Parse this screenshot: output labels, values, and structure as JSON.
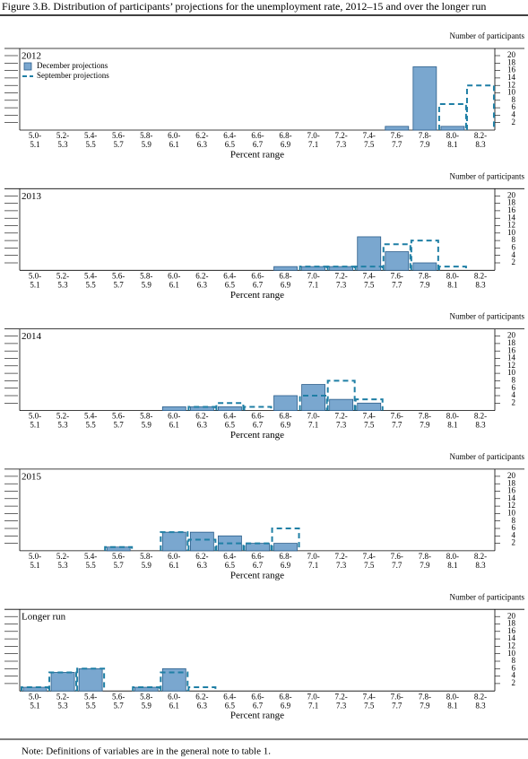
{
  "title": "Figure 3.B. Distribution of participants’ projections for the unemployment rate, 2012–15 and over the longer run",
  "note": "Note:  Definitions of variables are in the general note to table 1.",
  "chart_data": [
    {
      "type": "bar",
      "title": "2012",
      "y_label": "Number of participants",
      "x_label": "Percent range",
      "legend": "upper left",
      "categories": [
        [
          "5.0-",
          "5.1"
        ],
        [
          "5.2-",
          "5.3"
        ],
        [
          "5.4-",
          "5.5"
        ],
        [
          "5.6-",
          "5.7"
        ],
        [
          "5.8-",
          "5.9"
        ],
        [
          "6.0-",
          "6.1"
        ],
        [
          "6.2-",
          "6.3"
        ],
        [
          "6.4-",
          "6.5"
        ],
        [
          "6.6-",
          "6.7"
        ],
        [
          "6.8-",
          "6.9"
        ],
        [
          "7.0-",
          "7.1"
        ],
        [
          "7.2-",
          "7.3"
        ],
        [
          "7.4-",
          "7.5"
        ],
        [
          "7.6-",
          "7.7"
        ],
        [
          "7.8-",
          "7.9"
        ],
        [
          "8.0-",
          "8.1"
        ],
        [
          "8.2-",
          "8.3"
        ]
      ],
      "series": [
        {
          "name": "December projections",
          "color": "#7aa7cf",
          "values": [
            0,
            0,
            0,
            0,
            0,
            0,
            0,
            0,
            0,
            0,
            0,
            0,
            0,
            1,
            17,
            1,
            0
          ]
        },
        {
          "name": "September projections",
          "color": "#1f7fa5",
          "values": [
            0,
            0,
            0,
            0,
            0,
            0,
            0,
            0,
            0,
            0,
            0,
            0,
            0,
            0,
            0,
            7,
            12
          ]
        }
      ],
      "ylim": [
        0,
        20
      ],
      "yticks": [
        2,
        4,
        6,
        8,
        10,
        12,
        14,
        16,
        18,
        20
      ]
    },
    {
      "type": "bar",
      "title": "2013",
      "y_label": "Number of participants",
      "x_label": "Percent range",
      "categories": [
        [
          "5.0-",
          "5.1"
        ],
        [
          "5.2-",
          "5.3"
        ],
        [
          "5.4-",
          "5.5"
        ],
        [
          "5.6-",
          "5.7"
        ],
        [
          "5.8-",
          "5.9"
        ],
        [
          "6.0-",
          "6.1"
        ],
        [
          "6.2-",
          "6.3"
        ],
        [
          "6.4-",
          "6.5"
        ],
        [
          "6.6-",
          "6.7"
        ],
        [
          "6.8-",
          "6.9"
        ],
        [
          "7.0-",
          "7.1"
        ],
        [
          "7.2-",
          "7.3"
        ],
        [
          "7.4-",
          "7.5"
        ],
        [
          "7.6-",
          "7.7"
        ],
        [
          "7.8-",
          "7.9"
        ],
        [
          "8.0-",
          "8.1"
        ],
        [
          "8.2-",
          "8.3"
        ]
      ],
      "series": [
        {
          "color": "#7aa7cf",
          "values": [
            0,
            0,
            0,
            0,
            0,
            0,
            0,
            0,
            0,
            1,
            1,
            1,
            9,
            5,
            2,
            0,
            0
          ]
        },
        {
          "color": "#1f7fa5",
          "values": [
            0,
            0,
            0,
            0,
            0,
            0,
            0,
            0,
            0,
            0,
            1,
            1,
            1,
            7,
            8,
            1,
            0
          ]
        }
      ],
      "ylim": [
        0,
        20
      ],
      "yticks": [
        2,
        4,
        6,
        8,
        10,
        12,
        14,
        16,
        18,
        20
      ]
    },
    {
      "type": "bar",
      "title": "2014",
      "y_label": "Number of participants",
      "x_label": "Percent range",
      "categories": [
        [
          "5.0-",
          "5.1"
        ],
        [
          "5.2-",
          "5.3"
        ],
        [
          "5.4-",
          "5.5"
        ],
        [
          "5.6-",
          "5.7"
        ],
        [
          "5.8-",
          "5.9"
        ],
        [
          "6.0-",
          "6.1"
        ],
        [
          "6.2-",
          "6.3"
        ],
        [
          "6.4-",
          "6.5"
        ],
        [
          "6.6-",
          "6.7"
        ],
        [
          "6.8-",
          "6.9"
        ],
        [
          "7.0-",
          "7.1"
        ],
        [
          "7.2-",
          "7.3"
        ],
        [
          "7.4-",
          "7.5"
        ],
        [
          "7.6-",
          "7.7"
        ],
        [
          "7.8-",
          "7.9"
        ],
        [
          "8.0-",
          "8.1"
        ],
        [
          "8.2-",
          "8.3"
        ]
      ],
      "series": [
        {
          "color": "#7aa7cf",
          "values": [
            0,
            0,
            0,
            0,
            0,
            1,
            1,
            1,
            0,
            4,
            7,
            3,
            2,
            0,
            0,
            0,
            0
          ]
        },
        {
          "color": "#1f7fa5",
          "values": [
            0,
            0,
            0,
            0,
            0,
            0,
            1,
            2,
            1,
            0,
            4,
            8,
            3,
            0,
            0,
            0,
            0
          ]
        }
      ],
      "ylim": [
        0,
        20
      ],
      "yticks": [
        2,
        4,
        6,
        8,
        10,
        12,
        14,
        16,
        18,
        20
      ]
    },
    {
      "type": "bar",
      "title": "2015",
      "y_label": "Number of participants",
      "x_label": "Percent range",
      "categories": [
        [
          "5.0-",
          "5.1"
        ],
        [
          "5.2-",
          "5.3"
        ],
        [
          "5.4-",
          "5.5"
        ],
        [
          "5.6-",
          "5.7"
        ],
        [
          "5.8-",
          "5.9"
        ],
        [
          "6.0-",
          "6.1"
        ],
        [
          "6.2-",
          "6.3"
        ],
        [
          "6.4-",
          "6.5"
        ],
        [
          "6.6-",
          "6.7"
        ],
        [
          "6.8-",
          "6.9"
        ],
        [
          "7.0-",
          "7.1"
        ],
        [
          "7.2-",
          "7.3"
        ],
        [
          "7.4-",
          "7.5"
        ],
        [
          "7.6-",
          "7.7"
        ],
        [
          "7.8-",
          "7.9"
        ],
        [
          "8.0-",
          "8.1"
        ],
        [
          "8.2-",
          "8.3"
        ]
      ],
      "series": [
        {
          "color": "#7aa7cf",
          "values": [
            0,
            0,
            0,
            1,
            0,
            5,
            5,
            4,
            2,
            2,
            0,
            0,
            0,
            0,
            0,
            0,
            0
          ]
        },
        {
          "color": "#1f7fa5",
          "values": [
            0,
            0,
            0,
            1,
            0,
            5,
            3,
            2,
            2,
            6,
            0,
            0,
            0,
            0,
            0,
            0,
            0
          ]
        }
      ],
      "ylim": [
        0,
        20
      ],
      "yticks": [
        2,
        4,
        6,
        8,
        10,
        12,
        14,
        16,
        18,
        20
      ]
    },
    {
      "type": "bar",
      "title": "Longer run",
      "y_label": "Number of participants",
      "x_label": "Percent range",
      "categories": [
        [
          "5.0-",
          "5.1"
        ],
        [
          "5.2-",
          "5.3"
        ],
        [
          "5.4-",
          "5.5"
        ],
        [
          "5.6-",
          "5.7"
        ],
        [
          "5.8-",
          "5.9"
        ],
        [
          "6.0-",
          "6.1"
        ],
        [
          "6.2-",
          "6.3"
        ],
        [
          "6.4-",
          "6.5"
        ],
        [
          "6.6-",
          "6.7"
        ],
        [
          "6.8-",
          "6.9"
        ],
        [
          "7.0-",
          "7.1"
        ],
        [
          "7.2-",
          "7.3"
        ],
        [
          "7.4-",
          "7.5"
        ],
        [
          "7.6-",
          "7.7"
        ],
        [
          "7.8-",
          "7.9"
        ],
        [
          "8.0-",
          "8.1"
        ],
        [
          "8.2-",
          "8.3"
        ]
      ],
      "series": [
        {
          "color": "#7aa7cf",
          "values": [
            1,
            5,
            6,
            0,
            1,
            6,
            0,
            0,
            0,
            0,
            0,
            0,
            0,
            0,
            0,
            0,
            0
          ]
        },
        {
          "color": "#1f7fa5",
          "values": [
            1,
            5,
            6,
            0,
            1,
            5,
            1,
            0,
            0,
            0,
            0,
            0,
            0,
            0,
            0,
            0,
            0
          ]
        }
      ],
      "ylim": [
        0,
        20
      ],
      "yticks": [
        2,
        4,
        6,
        8,
        10,
        12,
        14,
        16,
        18,
        20
      ]
    }
  ]
}
